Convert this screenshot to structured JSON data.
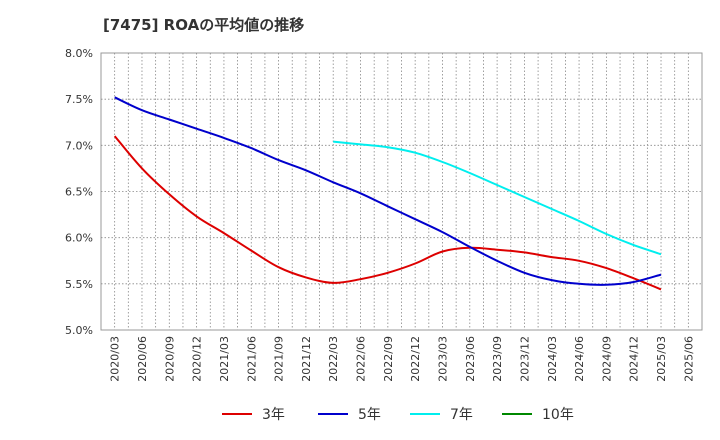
{
  "title": "[7475]  ROAの平均値の推移",
  "chart_data": {
    "type": "line",
    "categories": [
      "2020/03",
      "2020/06",
      "2020/09",
      "2020/12",
      "2021/03",
      "2021/06",
      "2021/09",
      "2021/12",
      "2022/03",
      "2022/06",
      "2022/09",
      "2022/12",
      "2023/03",
      "2023/06",
      "2023/09",
      "2023/12",
      "2024/03",
      "2024/06",
      "2024/09",
      "2024/12",
      "2025/03",
      "2025/06"
    ],
    "ylim": [
      5.0,
      8.0
    ],
    "yticks": [
      5.0,
      5.5,
      6.0,
      6.5,
      7.0,
      7.5,
      8.0
    ],
    "ytick_labels": [
      "5.0%",
      "5.5%",
      "6.0%",
      "6.5%",
      "7.0%",
      "7.5%",
      "8.0%"
    ],
    "grid": true,
    "legend_position": "bottom",
    "series": [
      {
        "name": "3年",
        "color": "#dd0000",
        "values": [
          7.1,
          6.75,
          6.47,
          6.23,
          6.05,
          5.86,
          5.68,
          5.57,
          5.51,
          5.55,
          5.62,
          5.72,
          5.85,
          5.89,
          5.87,
          5.84,
          5.79,
          5.75,
          5.67,
          5.56,
          5.44,
          null
        ]
      },
      {
        "name": "5年",
        "color": "#0000cc",
        "values": [
          7.52,
          7.38,
          7.28,
          7.18,
          7.08,
          6.97,
          6.84,
          6.73,
          6.6,
          6.48,
          6.34,
          6.2,
          6.06,
          5.9,
          5.75,
          5.62,
          5.54,
          5.5,
          5.49,
          5.52,
          5.6,
          null
        ]
      },
      {
        "name": "7年",
        "color": "#00eeee",
        "values": [
          null,
          null,
          null,
          null,
          null,
          null,
          null,
          null,
          7.04,
          7.01,
          6.98,
          6.92,
          6.82,
          6.7,
          6.57,
          6.44,
          6.31,
          6.18,
          6.04,
          5.92,
          5.82,
          null
        ]
      },
      {
        "name": "10年",
        "color": "#008800",
        "values": [
          null,
          null,
          null,
          null,
          null,
          null,
          null,
          null,
          null,
          null,
          null,
          null,
          null,
          null,
          null,
          null,
          null,
          null,
          null,
          null,
          null,
          null
        ]
      }
    ]
  }
}
